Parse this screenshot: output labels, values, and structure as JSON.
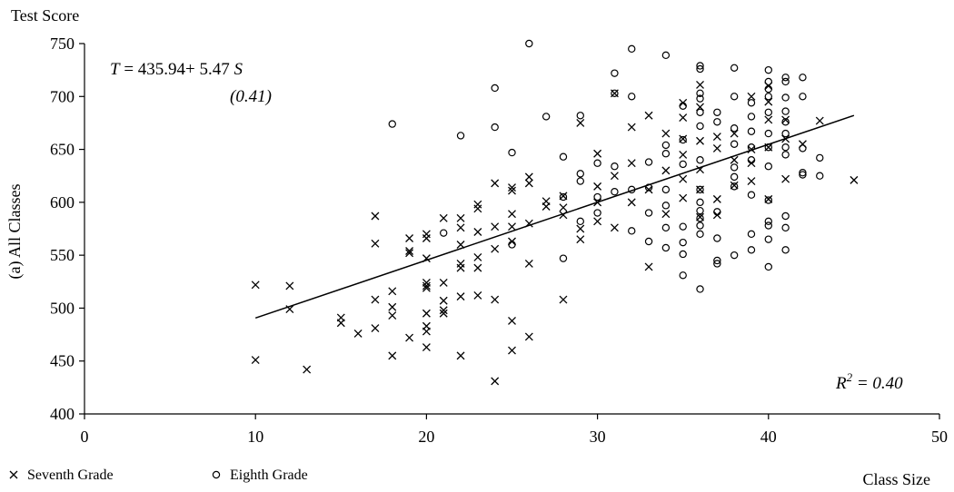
{
  "chart_data": {
    "type": "scatter",
    "title": "Test Score",
    "xlabel": "Class Size",
    "ylabel": "(a) All Classes",
    "xlim": [
      0,
      50
    ],
    "ylim": [
      400,
      750
    ],
    "x_ticks": [
      "0",
      "10",
      "20",
      "30",
      "40",
      "50"
    ],
    "y_ticks": [
      "400",
      "450",
      "500",
      "550",
      "600",
      "650",
      "700",
      "750"
    ],
    "grid": false,
    "legend_position": "bottom-left",
    "equation": {
      "lhs": "T",
      "middle": " = 435.94+ 5.47 ",
      "rhs": "S",
      "se": "(0.41)"
    },
    "r2": {
      "base": "R",
      "sup": "2",
      "value": " = 0.40"
    },
    "fit_line": {
      "intercept": 435.94,
      "slope": 5.47,
      "x_range": [
        10,
        45
      ]
    },
    "series": [
      {
        "name": "Seventh Grade",
        "marker": "x",
        "points": [
          [
            10,
            451
          ],
          [
            10,
            522
          ],
          [
            12,
            499
          ],
          [
            12,
            521
          ],
          [
            13,
            442
          ],
          [
            15,
            486
          ],
          [
            15,
            491
          ],
          [
            16,
            476
          ],
          [
            17,
            481
          ],
          [
            17,
            508
          ],
          [
            17,
            561
          ],
          [
            17,
            587
          ],
          [
            18,
            455
          ],
          [
            18,
            493
          ],
          [
            18,
            501
          ],
          [
            18,
            516
          ],
          [
            19,
            472
          ],
          [
            19,
            552
          ],
          [
            19,
            554
          ],
          [
            19,
            566
          ],
          [
            20,
            463
          ],
          [
            20,
            478
          ],
          [
            20,
            483
          ],
          [
            20,
            495
          ],
          [
            20,
            519
          ],
          [
            20,
            521
          ],
          [
            20,
            524
          ],
          [
            20,
            547
          ],
          [
            20,
            566
          ],
          [
            20,
            570
          ],
          [
            21,
            495
          ],
          [
            21,
            498
          ],
          [
            21,
            507
          ],
          [
            21,
            524
          ],
          [
            21,
            585
          ],
          [
            22,
            455
          ],
          [
            22,
            511
          ],
          [
            22,
            538
          ],
          [
            22,
            542
          ],
          [
            22,
            560
          ],
          [
            22,
            576
          ],
          [
            22,
            585
          ],
          [
            23,
            512
          ],
          [
            23,
            538
          ],
          [
            23,
            548
          ],
          [
            23,
            572
          ],
          [
            23,
            594
          ],
          [
            23,
            598
          ],
          [
            24,
            431
          ],
          [
            24,
            508
          ],
          [
            24,
            556
          ],
          [
            24,
            577
          ],
          [
            24,
            618
          ],
          [
            25,
            460
          ],
          [
            25,
            488
          ],
          [
            25,
            563
          ],
          [
            25,
            577
          ],
          [
            25,
            589
          ],
          [
            25,
            611
          ],
          [
            25,
            614
          ],
          [
            26,
            473
          ],
          [
            26,
            542
          ],
          [
            26,
            580
          ],
          [
            26,
            618
          ],
          [
            26,
            624
          ],
          [
            27,
            596
          ],
          [
            27,
            601
          ],
          [
            28,
            508
          ],
          [
            28,
            588
          ],
          [
            28,
            595
          ],
          [
            28,
            606
          ],
          [
            29,
            565
          ],
          [
            29,
            575
          ],
          [
            29,
            675
          ],
          [
            30,
            582
          ],
          [
            30,
            600
          ],
          [
            30,
            615
          ],
          [
            30,
            646
          ],
          [
            31,
            576
          ],
          [
            31,
            625
          ],
          [
            31,
            703
          ],
          [
            32,
            600
          ],
          [
            32,
            637
          ],
          [
            32,
            671
          ],
          [
            33,
            539
          ],
          [
            33,
            612
          ],
          [
            33,
            682
          ],
          [
            34,
            589
          ],
          [
            34,
            630
          ],
          [
            34,
            665
          ],
          [
            35,
            604
          ],
          [
            35,
            622
          ],
          [
            35,
            645
          ],
          [
            35,
            660
          ],
          [
            35,
            680
          ],
          [
            35,
            694
          ],
          [
            36,
            586
          ],
          [
            36,
            612
          ],
          [
            36,
            631
          ],
          [
            36,
            658
          ],
          [
            36,
            690
          ],
          [
            36,
            711
          ],
          [
            37,
            588
          ],
          [
            37,
            603
          ],
          [
            37,
            651
          ],
          [
            37,
            662
          ],
          [
            38,
            616
          ],
          [
            38,
            640
          ],
          [
            38,
            665
          ],
          [
            39,
            620
          ],
          [
            39,
            637
          ],
          [
            39,
            650
          ],
          [
            39,
            700
          ],
          [
            40,
            603
          ],
          [
            40,
            652
          ],
          [
            40,
            678
          ],
          [
            40,
            695
          ],
          [
            40,
            710
          ],
          [
            41,
            622
          ],
          [
            41,
            660
          ],
          [
            41,
            678
          ],
          [
            42,
            655
          ],
          [
            43,
            677
          ],
          [
            45,
            621
          ]
        ]
      },
      {
        "name": "Eighth Grade",
        "marker": "o",
        "points": [
          [
            18,
            674
          ],
          [
            21,
            571
          ],
          [
            22,
            663
          ],
          [
            24,
            671
          ],
          [
            24,
            708
          ],
          [
            25,
            560
          ],
          [
            25,
            647
          ],
          [
            26,
            750
          ],
          [
            27,
            681
          ],
          [
            28,
            547
          ],
          [
            28,
            643
          ],
          [
            28,
            605
          ],
          [
            29,
            620
          ],
          [
            29,
            627
          ],
          [
            29,
            582
          ],
          [
            29,
            682
          ],
          [
            30,
            590
          ],
          [
            30,
            637
          ],
          [
            30,
            605
          ],
          [
            31,
            610
          ],
          [
            31,
            634
          ],
          [
            31,
            703
          ],
          [
            31,
            722
          ],
          [
            32,
            745
          ],
          [
            32,
            700
          ],
          [
            32,
            612
          ],
          [
            32,
            573
          ],
          [
            33,
            563
          ],
          [
            33,
            590
          ],
          [
            33,
            614
          ],
          [
            33,
            638
          ],
          [
            34,
            739
          ],
          [
            34,
            557
          ],
          [
            34,
            576
          ],
          [
            34,
            597
          ],
          [
            34,
            612
          ],
          [
            34,
            646
          ],
          [
            34,
            654
          ],
          [
            35,
            531
          ],
          [
            35,
            551
          ],
          [
            35,
            562
          ],
          [
            35,
            577
          ],
          [
            35,
            636
          ],
          [
            35,
            659
          ],
          [
            35,
            691
          ],
          [
            36,
            518
          ],
          [
            36,
            570
          ],
          [
            36,
            578
          ],
          [
            36,
            585
          ],
          [
            36,
            592
          ],
          [
            36,
            600
          ],
          [
            36,
            612
          ],
          [
            36,
            640
          ],
          [
            36,
            672
          ],
          [
            36,
            685
          ],
          [
            36,
            698
          ],
          [
            36,
            703
          ],
          [
            36,
            726
          ],
          [
            36,
            729
          ],
          [
            37,
            542
          ],
          [
            37,
            545
          ],
          [
            37,
            566
          ],
          [
            37,
            591
          ],
          [
            37,
            676
          ],
          [
            37,
            685
          ],
          [
            38,
            550
          ],
          [
            38,
            615
          ],
          [
            38,
            624
          ],
          [
            38,
            633
          ],
          [
            38,
            655
          ],
          [
            38,
            670
          ],
          [
            38,
            700
          ],
          [
            38,
            727
          ],
          [
            39,
            555
          ],
          [
            39,
            570
          ],
          [
            39,
            607
          ],
          [
            39,
            640
          ],
          [
            39,
            652
          ],
          [
            39,
            667
          ],
          [
            39,
            681
          ],
          [
            39,
            694
          ],
          [
            40,
            539
          ],
          [
            40,
            565
          ],
          [
            40,
            578
          ],
          [
            40,
            582
          ],
          [
            40,
            602
          ],
          [
            40,
            634
          ],
          [
            40,
            652
          ],
          [
            40,
            665
          ],
          [
            40,
            685
          ],
          [
            40,
            700
          ],
          [
            40,
            707
          ],
          [
            40,
            714
          ],
          [
            40,
            725
          ],
          [
            41,
            555
          ],
          [
            41,
            576
          ],
          [
            41,
            587
          ],
          [
            41,
            645
          ],
          [
            41,
            652
          ],
          [
            41,
            665
          ],
          [
            41,
            676
          ],
          [
            41,
            686
          ],
          [
            41,
            699
          ],
          [
            41,
            714
          ],
          [
            41,
            718
          ],
          [
            42,
            626
          ],
          [
            42,
            628
          ],
          [
            42,
            651
          ],
          [
            42,
            700
          ],
          [
            42,
            718
          ],
          [
            43,
            625
          ],
          [
            43,
            642
          ]
        ]
      }
    ]
  }
}
